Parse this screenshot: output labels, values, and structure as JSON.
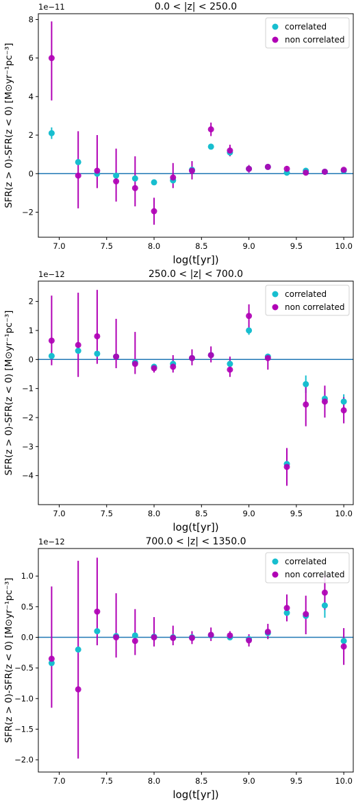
{
  "colors": {
    "correlated": "#17becf",
    "non_correlated": "#b000b5",
    "zero_line": "#1f77b4",
    "axis": "#000000"
  },
  "legend_labels": [
    "correlated",
    "non correlated"
  ],
  "chart_data": [
    {
      "type": "scatter",
      "title": "0.0 < |z| < 250.0",
      "xlabel": "log(t[yr])",
      "ylabel": "SFR(z > 0)-SFR(z < 0) [M⊙yr⁻¹pc⁻³]",
      "offset_label": "1e−11",
      "xlim": [
        6.78,
        10.1
      ],
      "ylim": [
        -3.3,
        8.3
      ],
      "xticks": [
        7.0,
        7.5,
        8.0,
        8.5,
        9.0,
        9.5,
        10.0
      ],
      "xtick_labels": [
        "7.0",
        "7.5",
        "8.0",
        "8.5",
        "9.0",
        "9.5",
        "10.0"
      ],
      "yticks": [
        -2,
        0,
        2,
        4,
        6,
        8
      ],
      "ytick_labels": [
        "−2",
        "0",
        "2",
        "4",
        "6",
        "8"
      ],
      "legend_position": "top-right",
      "grid": false,
      "x": [
        6.92,
        7.2,
        7.4,
        7.6,
        7.8,
        8.0,
        8.2,
        8.4,
        8.6,
        8.8,
        9.0,
        9.2,
        9.4,
        9.6,
        9.8,
        10.0
      ],
      "series": [
        {
          "name": "correlated",
          "values": [
            2.1,
            0.6,
            0.0,
            -0.1,
            -0.25,
            -0.45,
            -0.35,
            0.2,
            1.4,
            1.1,
            0.25,
            0.35,
            0.05,
            0.15,
            0.1,
            0.15
          ],
          "err_low": [
            0.3,
            0.05,
            0.05,
            0.05,
            0.05,
            0.05,
            0.05,
            0.05,
            0.05,
            0.15,
            0.05,
            0.05,
            0.05,
            0.05,
            0.05,
            0.05
          ],
          "err_high": [
            0.3,
            0.05,
            0.05,
            0.05,
            0.05,
            0.05,
            0.05,
            0.05,
            0.05,
            0.15,
            0.05,
            0.05,
            0.05,
            0.05,
            0.05,
            0.05
          ]
        },
        {
          "name": "non correlated",
          "values": [
            6.0,
            -0.1,
            0.15,
            -0.4,
            -0.75,
            -1.95,
            -0.2,
            0.15,
            2.3,
            1.2,
            0.25,
            0.35,
            0.25,
            0.05,
            0.1,
            0.2
          ],
          "err_low": [
            2.2,
            1.7,
            0.9,
            1.05,
            0.95,
            0.7,
            0.55,
            0.45,
            0.35,
            0.3,
            0.2,
            0.15,
            0.15,
            0.1,
            0.05,
            0.1
          ],
          "err_high": [
            1.9,
            2.3,
            1.85,
            1.7,
            1.65,
            0.7,
            0.75,
            0.5,
            0.35,
            0.3,
            0.2,
            0.15,
            0.15,
            0.1,
            0.05,
            0.1
          ]
        }
      ]
    },
    {
      "type": "scatter",
      "title": "250.0 < |z| < 700.0",
      "xlabel": "log(t[yr])",
      "ylabel": "SFR(z > 0)-SFR(z < 0) [M⊙yr⁻¹pc⁻³]",
      "offset_label": "1e−12",
      "xlim": [
        6.78,
        10.1
      ],
      "ylim": [
        -5.0,
        2.7
      ],
      "xticks": [
        7.0,
        7.5,
        8.0,
        8.5,
        9.0,
        9.5,
        10.0
      ],
      "xtick_labels": [
        "7.0",
        "7.5",
        "8.0",
        "8.5",
        "9.0",
        "9.5",
        "10.0"
      ],
      "yticks": [
        -4,
        -3,
        -2,
        -1,
        0,
        1,
        2
      ],
      "ytick_labels": [
        "−4",
        "−3",
        "−2",
        "−1",
        "0",
        "1",
        "2"
      ],
      "legend_position": "top-right",
      "grid": false,
      "x": [
        6.92,
        7.2,
        7.4,
        7.6,
        7.8,
        8.0,
        8.2,
        8.4,
        8.6,
        8.8,
        9.0,
        9.2,
        9.4,
        9.6,
        9.8,
        10.0
      ],
      "series": [
        {
          "name": "correlated",
          "values": [
            0.12,
            0.3,
            0.2,
            0.1,
            -0.1,
            -0.25,
            -0.15,
            0.05,
            0.15,
            -0.15,
            1.0,
            0.1,
            -3.6,
            -0.85,
            -1.35,
            -1.45
          ],
          "err_low": [
            0.05,
            0.1,
            0.05,
            0.05,
            0.05,
            0.05,
            0.05,
            0.05,
            0.05,
            0.05,
            0.15,
            0.05,
            0.15,
            0.3,
            0.25,
            0.25
          ],
          "err_high": [
            0.05,
            0.1,
            0.05,
            0.05,
            0.05,
            0.05,
            0.05,
            0.05,
            0.05,
            0.05,
            0.15,
            0.05,
            0.15,
            0.3,
            0.25,
            0.25
          ]
        },
        {
          "name": "non correlated",
          "values": [
            0.65,
            0.5,
            0.8,
            0.1,
            -0.15,
            -0.3,
            -0.25,
            0.05,
            0.15,
            -0.35,
            1.5,
            0.05,
            -3.7,
            -1.55,
            -1.45,
            -1.75
          ],
          "err_low": [
            0.85,
            1.1,
            0.95,
            0.4,
            0.35,
            0.15,
            0.2,
            0.25,
            0.25,
            0.25,
            0.4,
            0.4,
            0.65,
            0.75,
            0.55,
            0.45
          ],
          "err_high": [
            1.55,
            1.8,
            1.6,
            1.3,
            1.1,
            0.15,
            0.4,
            0.3,
            0.3,
            0.45,
            0.4,
            0.15,
            0.65,
            0.75,
            0.55,
            0.45
          ]
        }
      ]
    },
    {
      "type": "scatter",
      "title": "700.0 < |z| < 1350.0",
      "xlabel": "log(t[yr])",
      "ylabel": "SFR(z > 0)-SFR(z < 0) [M⊙yr⁻¹pc⁻³]",
      "offset_label": "1e−12",
      "xlim": [
        6.78,
        10.1
      ],
      "ylim": [
        -2.2,
        1.45
      ],
      "xticks": [
        7.0,
        7.5,
        8.0,
        8.5,
        9.0,
        9.5,
        10.0
      ],
      "xtick_labels": [
        "7.0",
        "7.5",
        "8.0",
        "8.5",
        "9.0",
        "9.5",
        "10.0"
      ],
      "yticks": [
        -2.0,
        -1.5,
        -1.0,
        -0.5,
        0.0,
        0.5,
        1.0
      ],
      "ytick_labels": [
        "−2.0",
        "−1.5",
        "−1.0",
        "−0.5",
        "0.0",
        "0.5",
        "1.0"
      ],
      "legend_position": "top-right",
      "grid": false,
      "x": [
        6.92,
        7.2,
        7.4,
        7.6,
        7.8,
        8.0,
        8.2,
        8.4,
        8.6,
        8.8,
        9.0,
        9.2,
        9.4,
        9.6,
        9.8,
        10.0
      ],
      "series": [
        {
          "name": "correlated",
          "values": [
            -0.42,
            -0.2,
            0.1,
            0.02,
            0.03,
            0.01,
            0.0,
            0.0,
            0.03,
            0.0,
            -0.03,
            0.07,
            0.4,
            0.35,
            0.52,
            -0.06
          ],
          "err_low": [
            0.05,
            0.05,
            0.05,
            0.02,
            0.02,
            0.02,
            0.02,
            0.02,
            0.02,
            0.02,
            0.02,
            0.05,
            0.05,
            0.05,
            0.2,
            0.05
          ],
          "err_high": [
            0.05,
            0.05,
            0.05,
            0.02,
            0.02,
            0.02,
            0.02,
            0.02,
            0.02,
            0.02,
            0.02,
            0.05,
            0.05,
            0.05,
            0.2,
            0.05
          ]
        },
        {
          "name": "non correlated",
          "values": [
            -0.35,
            -0.85,
            0.42,
            0.0,
            -0.06,
            0.0,
            -0.01,
            -0.01,
            0.04,
            0.03,
            -0.05,
            0.09,
            0.48,
            0.38,
            0.73,
            -0.15
          ],
          "err_low": [
            0.8,
            1.13,
            0.55,
            0.33,
            0.23,
            0.15,
            0.12,
            0.1,
            0.1,
            0.07,
            0.1,
            0.12,
            0.22,
            0.33,
            0.28,
            0.3
          ],
          "err_high": [
            1.18,
            2.1,
            0.88,
            0.72,
            0.52,
            0.33,
            0.2,
            0.11,
            0.12,
            0.07,
            0.1,
            0.13,
            0.22,
            0.3,
            0.28,
            0.3
          ]
        }
      ]
    }
  ]
}
